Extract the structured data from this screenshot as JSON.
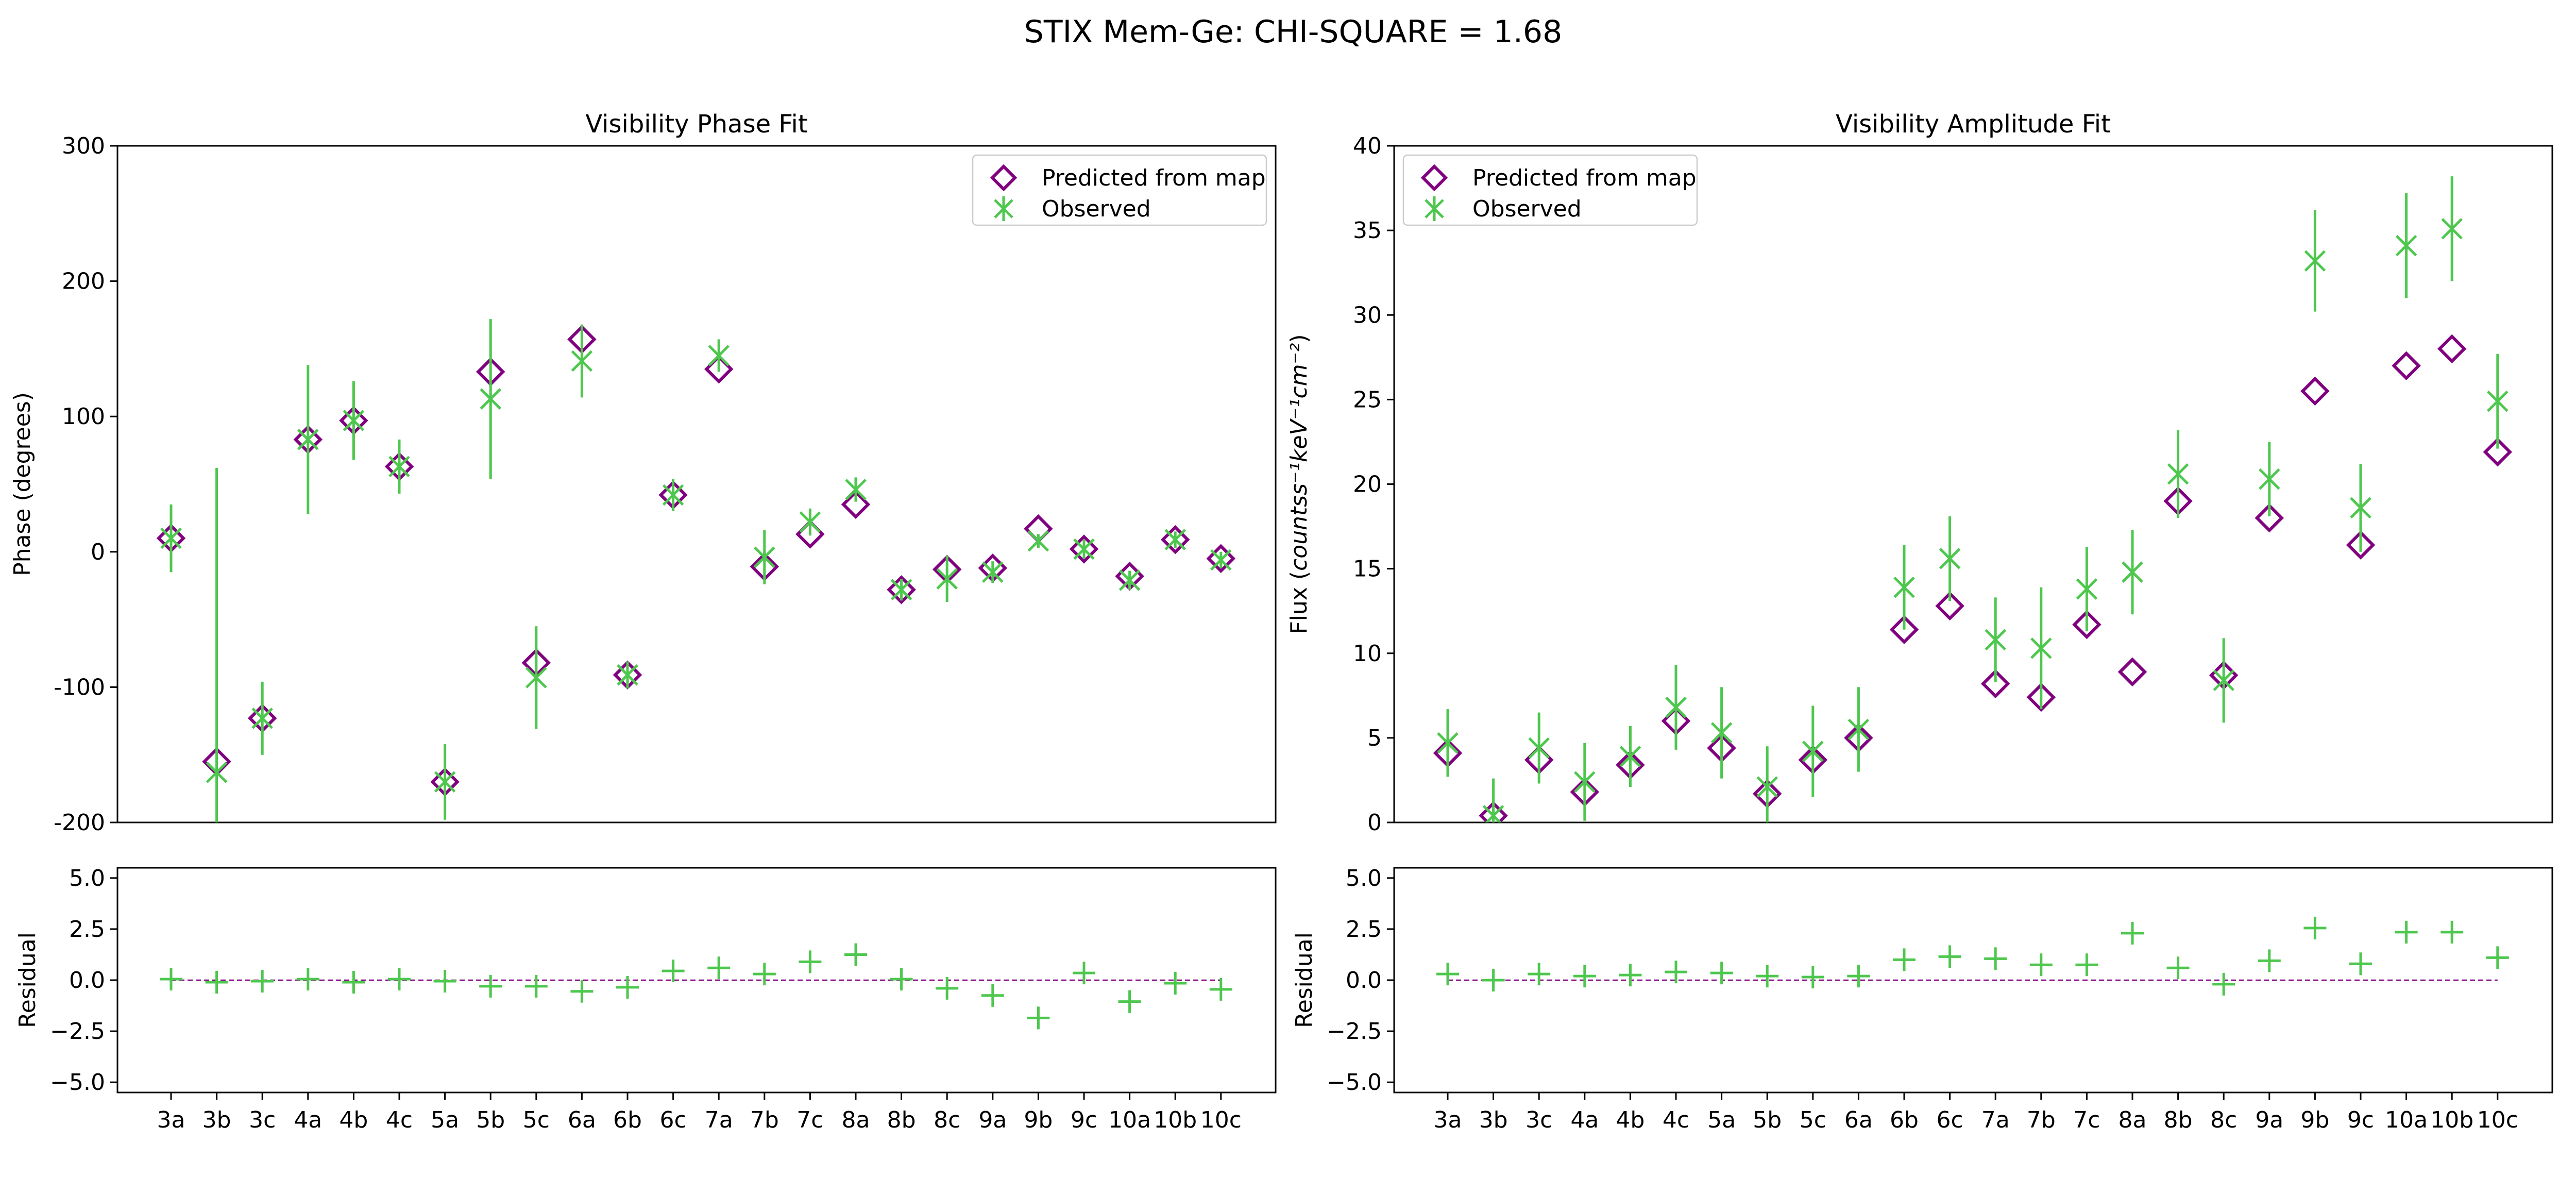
{
  "figure_title": "STIX Mem-Ge: CHI-SQUARE = 1.68",
  "colors": {
    "predicted": "#800080",
    "observed": "#4dc74d",
    "zero_line": "#800080",
    "axes": "#000000"
  },
  "icons": {
    "predicted": "diamond-marker-icon",
    "observed": "x-marker-with-errorbar-icon",
    "residual": "plus-marker-icon"
  },
  "chart_data": [
    {
      "type": "scatter",
      "title": "Visibility Phase Fit",
      "xlabel": "",
      "ylabel": "Phase (degrees)",
      "ylim": [
        -200,
        300
      ],
      "yticks": [
        "-200",
        "-100",
        "0",
        "100",
        "200",
        "300"
      ],
      "categories": [
        "3a",
        "3b",
        "3c",
        "4a",
        "4b",
        "4c",
        "5a",
        "5b",
        "5c",
        "6a",
        "6b",
        "6c",
        "7a",
        "7b",
        "7c",
        "8a",
        "8b",
        "8c",
        "9a",
        "9b",
        "9c",
        "10a",
        "10b",
        "10c"
      ],
      "legend": {
        "position": "top-right",
        "entries": [
          "Predicted from map",
          "Observed"
        ]
      },
      "series": [
        {
          "name": "Predicted from map",
          "marker": "diamond",
          "values": [
            10,
            -155,
            -123,
            83,
            97,
            63,
            -170,
            133,
            -82,
            157,
            -91,
            42,
            135,
            -11,
            13,
            35,
            -28,
            -13,
            -12,
            17,
            2,
            -18,
            9,
            -5
          ]
        },
        {
          "name": "Observed",
          "marker": "x",
          "values": [
            10,
            -163,
            -123,
            83,
            97,
            63,
            -170,
            113,
            -93,
            141,
            -91,
            42,
            145,
            -4,
            22,
            46,
            -28,
            -20,
            -15,
            8,
            2,
            -21,
            9,
            -6
          ],
          "error": [
            25,
            225,
            27,
            55,
            29,
            20,
            28,
            59,
            38,
            27,
            10,
            12,
            12,
            20,
            10,
            9,
            8,
            17,
            8,
            5,
            7,
            7,
            6,
            6
          ]
        }
      ]
    },
    {
      "type": "scatter",
      "title": "Visibility Amplitude Fit",
      "xlabel": "",
      "ylabel": "Flux (countss⁻¹keV⁻¹cm⁻²)",
      "ylim": [
        0,
        40
      ],
      "yticks": [
        "0",
        "5",
        "10",
        "15",
        "20",
        "25",
        "30",
        "35",
        "40"
      ],
      "categories": [
        "3a",
        "3b",
        "3c",
        "4a",
        "4b",
        "4c",
        "5a",
        "5b",
        "5c",
        "6a",
        "6b",
        "6c",
        "7a",
        "7b",
        "7c",
        "8a",
        "8b",
        "8c",
        "9a",
        "9b",
        "9c",
        "10a",
        "10b",
        "10c"
      ],
      "legend": {
        "position": "top-left",
        "entries": [
          "Predicted from map",
          "Observed"
        ]
      },
      "series": [
        {
          "name": "Predicted from map",
          "marker": "diamond",
          "values": [
            4.1,
            0.4,
            3.7,
            1.8,
            3.4,
            6.0,
            4.4,
            1.7,
            3.7,
            5.0,
            11.4,
            12.8,
            8.2,
            7.4,
            11.7,
            8.9,
            19.0,
            8.7,
            18.0,
            25.5,
            16.4,
            27.0,
            28.0,
            21.9
          ]
        },
        {
          "name": "Observed",
          "marker": "x",
          "values": [
            4.7,
            0.4,
            4.4,
            2.4,
            3.9,
            6.8,
            5.3,
            2.1,
            4.2,
            5.5,
            13.9,
            15.6,
            10.8,
            10.3,
            13.8,
            14.8,
            20.6,
            8.4,
            20.3,
            33.2,
            18.6,
            34.1,
            35.1,
            24.9
          ],
          "error": [
            2.0,
            2.2,
            2.1,
            2.3,
            1.8,
            2.5,
            2.7,
            2.4,
            2.7,
            2.5,
            2.5,
            2.5,
            2.5,
            3.6,
            2.5,
            2.5,
            2.6,
            2.5,
            2.2,
            3.0,
            2.6,
            3.1,
            3.1,
            2.8
          ]
        }
      ]
    },
    {
      "type": "scatter",
      "title": "",
      "xlabel": "",
      "ylabel": "Residual",
      "ylim": [
        -5.5,
        5.5
      ],
      "yticks": [
        "−5.0",
        "−2.5",
        "0.0",
        "2.5",
        "5.0"
      ],
      "categories": [
        "3a",
        "3b",
        "3c",
        "4a",
        "4b",
        "4c",
        "5a",
        "5b",
        "5c",
        "6a",
        "6b",
        "6c",
        "7a",
        "7b",
        "7c",
        "8a",
        "8b",
        "8c",
        "9a",
        "9b",
        "9c",
        "10a",
        "10b",
        "10c"
      ],
      "series": [
        {
          "name": "",
          "marker": "plus",
          "values": [
            0.05,
            -0.1,
            -0.05,
            0.05,
            -0.1,
            0.05,
            -0.05,
            -0.3,
            -0.3,
            -0.55,
            -0.35,
            0.45,
            0.6,
            0.3,
            0.9,
            1.25,
            0.05,
            -0.4,
            -0.75,
            -1.85,
            0.35,
            -1.05,
            -0.15,
            -0.45
          ]
        }
      ]
    },
    {
      "type": "scatter",
      "title": "",
      "xlabel": "",
      "ylabel": "Residual",
      "ylim": [
        -5.5,
        5.5
      ],
      "yticks": [
        "−5.0",
        "−2.5",
        "0.0",
        "2.5",
        "5.0"
      ],
      "categories": [
        "3a",
        "3b",
        "3c",
        "4a",
        "4b",
        "4c",
        "5a",
        "5b",
        "5c",
        "6a",
        "6b",
        "6c",
        "7a",
        "7b",
        "7c",
        "8a",
        "8b",
        "8c",
        "9a",
        "9b",
        "9c",
        "10a",
        "10b",
        "10c"
      ],
      "series": [
        {
          "name": "",
          "marker": "plus",
          "values": [
            0.3,
            0.0,
            0.3,
            0.2,
            0.25,
            0.4,
            0.35,
            0.2,
            0.15,
            0.2,
            1.0,
            1.15,
            1.05,
            0.75,
            0.75,
            2.3,
            0.6,
            -0.2,
            0.95,
            2.55,
            0.8,
            2.35,
            2.35,
            1.1
          ]
        }
      ]
    }
  ]
}
